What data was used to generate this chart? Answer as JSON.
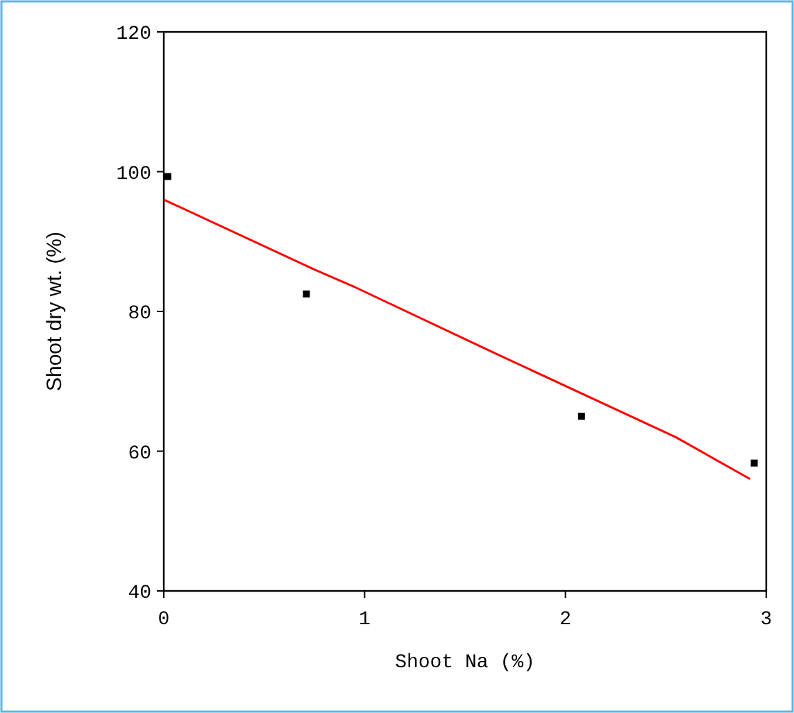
{
  "chart_data": {
    "type": "scatter",
    "xlabel": "Shoot Na (%)",
    "ylabel": "Shoot dry wt. (%)",
    "xlim": [
      0,
      3
    ],
    "xticks": [
      0,
      1,
      2,
      3
    ],
    "ylim": [
      40,
      120
    ],
    "yticks": [
      40,
      60,
      80,
      100,
      120
    ],
    "grid": false,
    "series": [
      {
        "color": "#000000",
        "marker": "square",
        "x": [
          0.02,
          0.71,
          2.08,
          2.94
        ],
        "values": [
          99.3,
          82.5,
          65,
          58.3
        ]
      },
      {
        "type": "line",
        "color": "#ff0000",
        "marker": "none",
        "line_style": "solid",
        "x": [
          0,
          0.75,
          0.95,
          1.65,
          2.55,
          2.92
        ],
        "values": [
          96,
          86,
          83.5,
          74,
          62,
          56
        ]
      }
    ]
  }
}
